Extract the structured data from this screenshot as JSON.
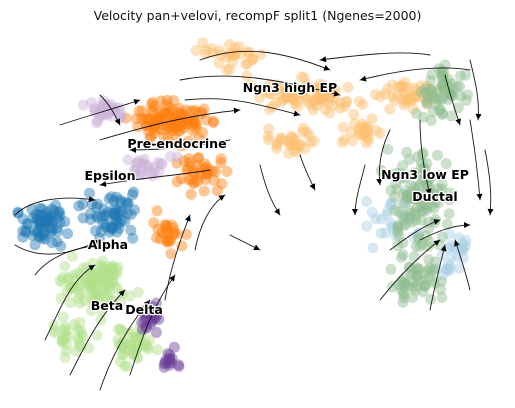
{
  "chart_data": {
    "type": "scatter",
    "title": "Velocity pan+velovi, recompF split1 (Ngenes=2000)",
    "embedding": "UMAP",
    "axes_visible": false,
    "grid": false,
    "overlay": "velocity stream plot",
    "clusters": [
      {
        "name": "Ngn3 high EP",
        "color": "#fdbf6f"
      },
      {
        "name": "Pre-endocrine",
        "color": "#ff7f0e"
      },
      {
        "name": "Epsilon",
        "color": "#cab2d6"
      },
      {
        "name": "Alpha",
        "color": "#1f77b4"
      },
      {
        "name": "Beta",
        "color": "#b2df8a"
      },
      {
        "name": "Delta",
        "color": "#6a3d9a"
      },
      {
        "name": "Ngn3 low EP",
        "color": "#a6cee3"
      },
      {
        "name": "Ductal",
        "color": "#8fbc8f"
      }
    ]
  }
}
